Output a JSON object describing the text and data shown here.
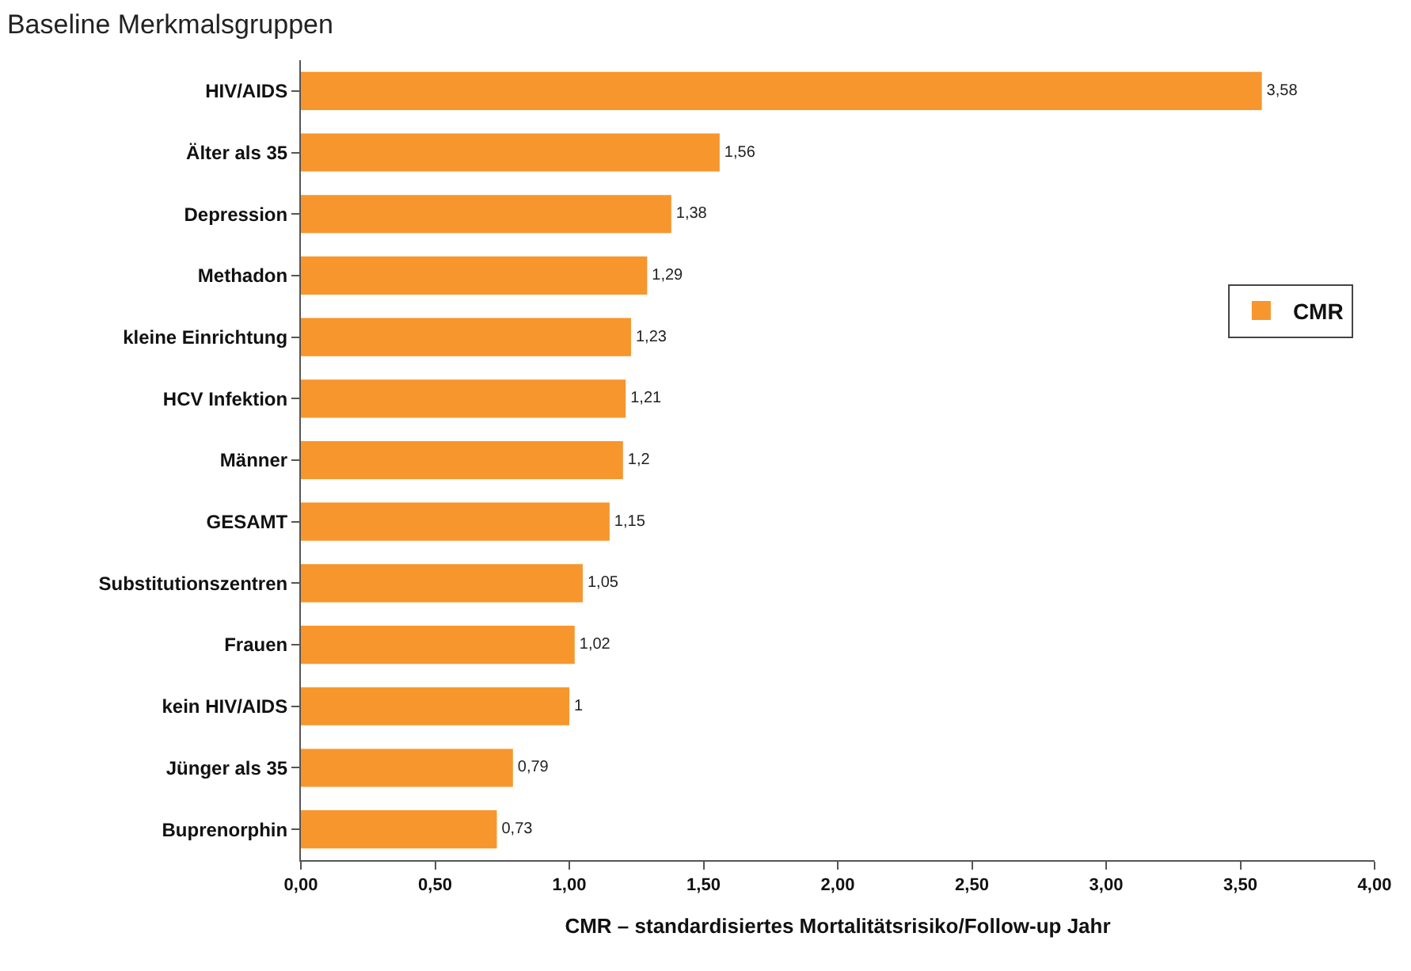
{
  "chart_data": {
    "type": "bar",
    "orientation": "horizontal",
    "title": "Baseline Merkmalsgruppen",
    "xlabel": "CMR – standardisiertes Mortalitätsrisiko/Follow-up Jahr",
    "categories": [
      "HIV/AIDS",
      "Älter als 35",
      "Depression",
      "Methadon",
      "kleine Einrichtung",
      "HCV Infektion",
      "Männer",
      "GESAMT",
      "Substitutionszentren",
      "Frauen",
      "kein HIV/AIDS",
      "Jünger als 35",
      "Buprenorphin"
    ],
    "series": [
      {
        "name": "CMR",
        "color": "#f7962d",
        "values": [
          3.58,
          1.56,
          1.38,
          1.29,
          1.23,
          1.21,
          1.2,
          1.15,
          1.05,
          1.02,
          1,
          0.79,
          0.73
        ],
        "value_labels": [
          "3,58",
          "1,56",
          "1,38",
          "1,29",
          "1,23",
          "1,21",
          "1,2",
          "1,15",
          "1,05",
          "1,02",
          "1",
          "0,79",
          "0,73"
        ]
      }
    ],
    "xlim": [
      0,
      4
    ],
    "xticks": [
      {
        "value": 0,
        "label": "0,00"
      },
      {
        "value": 0.5,
        "label": "0,50"
      },
      {
        "value": 1,
        "label": "1,00"
      },
      {
        "value": 1.5,
        "label": "1,50"
      },
      {
        "value": 2,
        "label": "2,00"
      },
      {
        "value": 2.5,
        "label": "2,50"
      },
      {
        "value": 3,
        "label": "3,00"
      },
      {
        "value": 3.5,
        "label": "3,50"
      },
      {
        "value": 4,
        "label": "4,00"
      }
    ],
    "legend": "top right"
  }
}
